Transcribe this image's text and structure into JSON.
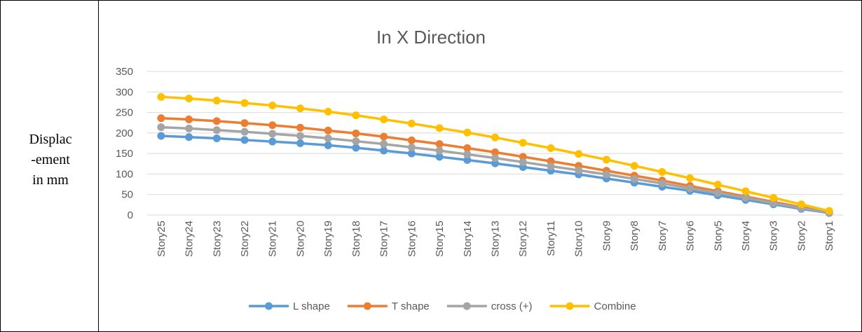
{
  "chart_data": {
    "type": "line",
    "title": "In X Direction",
    "ylabel": [
      "Displac",
      "-ement",
      "in mm"
    ],
    "categories": [
      "Story25",
      "Story24",
      "Story23",
      "Story22",
      "Story21",
      "Story20",
      "Story19",
      "Story18",
      "Story17",
      "Story16",
      "Story15",
      "Story14",
      "Story13",
      "Story12",
      "Story11",
      "Story10",
      "Story9",
      "Story8",
      "Story7",
      "Story6",
      "Story5",
      "Story4",
      "Story3",
      "Story2",
      "Story1"
    ],
    "series": [
      {
        "name": "L shape",
        "color": "#5b9bd5",
        "values": [
          193,
          190,
          187,
          183,
          179,
          175,
          170,
          164,
          157,
          150,
          142,
          134,
          126,
          117,
          108,
          99,
          89,
          79,
          69,
          59,
          48,
          37,
          26,
          15,
          5
        ]
      },
      {
        "name": "T shape",
        "color": "#ed7d31",
        "values": [
          236,
          233,
          229,
          224,
          219,
          213,
          206,
          199,
          191,
          182,
          173,
          163,
          153,
          142,
          131,
          120,
          108,
          96,
          84,
          71,
          58,
          45,
          32,
          19,
          7
        ]
      },
      {
        "name": "cross (+)",
        "color": "#a5a5a5",
        "values": [
          214,
          211,
          207,
          203,
          198,
          193,
          187,
          180,
          173,
          165,
          157,
          148,
          139,
          129,
          119,
          109,
          99,
          88,
          77,
          65,
          54,
          42,
          29,
          17,
          6
        ]
      },
      {
        "name": "Combine",
        "color": "#ffc000",
        "values": [
          288,
          284,
          279,
          273,
          267,
          260,
          252,
          243,
          233,
          223,
          212,
          201,
          189,
          176,
          163,
          149,
          135,
          120,
          105,
          90,
          74,
          58,
          42,
          26,
          10
        ]
      }
    ],
    "ylim": [
      0,
      350
    ],
    "yticks": [
      0,
      50,
      100,
      150,
      200,
      250,
      300,
      350
    ],
    "grid": true,
    "legend": "bottom"
  }
}
